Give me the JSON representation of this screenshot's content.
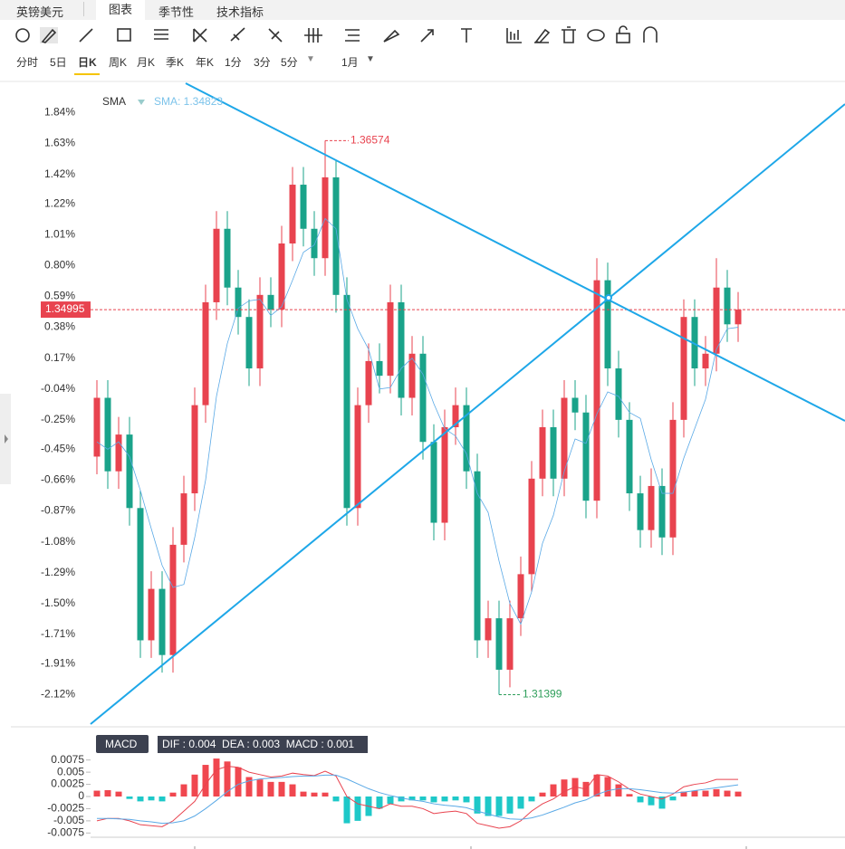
{
  "header": {
    "symbol": "英镑美元",
    "tabs": [
      "图表",
      "季节性",
      "技术指标"
    ]
  },
  "periods": [
    "分时",
    "5日",
    "日K",
    "周K",
    "月K",
    "季K",
    "年K",
    "1分",
    "3分",
    "5分"
  ],
  "period_dropdown": "1月",
  "indicator": {
    "name": "SMA",
    "readout": "SMA: 1.34823",
    "last_price": "1.34995",
    "max_label": "1.36574",
    "min_label": "1.31399"
  },
  "macd_panel": {
    "name": "MACD",
    "readout": "DIF : 0.004  DEA : 0.003  MACD : 0.001"
  },
  "chart_data": [
    {
      "type": "candlestick",
      "up_color": "#e8434f",
      "down_color": "#1aa38a",
      "ylim": [
        -2.32,
        2.04
      ],
      "yticks": [
        {
          "value": 1.84,
          "label": "1.84%"
        },
        {
          "value": 1.63,
          "label": "1.63%"
        },
        {
          "value": 1.42,
          "label": "1.42%"
        },
        {
          "value": 1.22,
          "label": "1.22%"
        },
        {
          "value": 1.01,
          "label": "1.01%"
        },
        {
          "value": 0.8,
          "label": "0.80%"
        },
        {
          "value": 0.59,
          "label": "0.59%"
        },
        {
          "value": 0.38,
          "label": "0.38%"
        },
        {
          "value": 0.17,
          "label": "0.17%"
        },
        {
          "value": -0.04,
          "label": "-0.04%"
        },
        {
          "value": -0.25,
          "label": "-0.25%"
        },
        {
          "value": -0.45,
          "label": "-0.45%"
        },
        {
          "value": -0.66,
          "label": "-0.66%"
        },
        {
          "value": -0.87,
          "label": "-0.87%"
        },
        {
          "value": -1.08,
          "label": "-1.08%"
        },
        {
          "value": -1.29,
          "label": "-1.29%"
        },
        {
          "value": -1.5,
          "label": "-1.50%"
        },
        {
          "value": -1.71,
          "label": "-1.71%"
        },
        {
          "value": -1.91,
          "label": "-1.91%"
        },
        {
          "value": -2.12,
          "label": "-2.12%"
        }
      ],
      "open": [
        -0.5,
        -0.1,
        -0.6,
        -0.35,
        -0.85,
        -1.75,
        -1.4,
        -1.85,
        -1.1,
        -0.75,
        -0.15,
        0.55,
        1.05,
        0.65,
        0.45,
        0.1,
        0.6,
        0.5,
        0.95,
        1.35,
        1.05,
        0.85,
        1.4,
        0.6,
        -0.85,
        -0.15,
        0.15,
        0.05,
        0.55,
        -0.1,
        0.2,
        -0.4,
        -0.95,
        -0.3,
        -0.15,
        -0.6,
        -1.75,
        -1.6,
        -1.95,
        -1.6,
        -1.3,
        -0.65,
        -0.3,
        -0.65,
        -0.1,
        -0.2,
        -0.8,
        0.7,
        0.1,
        -0.25,
        -0.75,
        -1.0,
        -0.7,
        -1.05,
        -0.25,
        0.45,
        0.1,
        0.2,
        0.65,
        0.4
      ],
      "high": [
        0.02,
        0.02,
        -0.23,
        -0.23,
        -0.73,
        -1.28,
        -1.28,
        -0.98,
        -0.63,
        -0.03,
        0.67,
        1.17,
        1.17,
        0.77,
        0.57,
        0.72,
        0.72,
        1.07,
        1.47,
        1.47,
        1.17,
        1.65,
        1.52,
        0.72,
        -0.03,
        0.27,
        0.27,
        0.67,
        0.67,
        0.32,
        0.32,
        -0.28,
        -0.18,
        -0.03,
        -0.03,
        -0.48,
        -1.48,
        -1.48,
        -1.48,
        -1.18,
        -0.53,
        -0.18,
        -0.18,
        0.02,
        0.02,
        -0.08,
        0.85,
        0.82,
        0.22,
        -0.13,
        -0.63,
        -0.58,
        -0.58,
        -0.13,
        0.57,
        0.57,
        0.32,
        0.85,
        0.77,
        0.62
      ],
      "low": [
        -0.62,
        -0.72,
        -0.72,
        -0.97,
        -1.87,
        -1.87,
        -1.97,
        -1.97,
        -1.22,
        -0.87,
        -0.27,
        0.43,
        0.53,
        0.33,
        -0.02,
        -0.02,
        0.38,
        0.38,
        0.83,
        0.93,
        0.73,
        0.73,
        0.48,
        -0.97,
        -0.97,
        -0.27,
        -0.07,
        -0.07,
        -0.22,
        -0.22,
        -0.52,
        -1.07,
        -1.07,
        -0.42,
        -0.72,
        -1.87,
        -1.87,
        -2.12,
        -2.07,
        -1.72,
        -1.42,
        -0.77,
        -0.77,
        -0.77,
        -0.32,
        -0.92,
        -0.92,
        -0.02,
        -0.37,
        -0.87,
        -1.12,
        -1.12,
        -1.17,
        -1.17,
        -0.37,
        -0.02,
        -0.02,
        0.08,
        0.28,
        0.28
      ],
      "close": [
        -0.1,
        -0.6,
        -0.35,
        -0.85,
        -1.75,
        -1.4,
        -1.85,
        -1.1,
        -0.75,
        -0.15,
        0.55,
        1.05,
        0.65,
        0.45,
        0.1,
        0.6,
        0.5,
        0.95,
        1.35,
        1.05,
        0.85,
        1.4,
        0.6,
        -0.85,
        -0.15,
        0.15,
        0.05,
        0.55,
        -0.1,
        0.2,
        -0.4,
        -0.95,
        -0.3,
        -0.15,
        -0.6,
        -1.75,
        -1.6,
        -1.95,
        -1.6,
        -1.3,
        -0.65,
        -0.3,
        -0.65,
        -0.1,
        -0.2,
        -0.8,
        0.7,
        0.1,
        -0.25,
        -0.75,
        -1.0,
        -0.7,
        -1.05,
        -0.25,
        0.45,
        0.1,
        0.2,
        0.65,
        0.4,
        0.5
      ],
      "series": [
        {
          "name": "SMA",
          "color": "#5aa9e6",
          "values": [
            -0.4,
            -0.45,
            -0.4,
            -0.5,
            -0.73,
            -0.99,
            -1.24,
            -1.39,
            -1.37,
            -1.05,
            -0.66,
            -0.09,
            0.27,
            0.51,
            0.56,
            0.57,
            0.46,
            0.52,
            0.7,
            0.89,
            0.94,
            1.12,
            1.05,
            0.57,
            0.37,
            0.23,
            -0.04,
            -0.03,
            0.1,
            0.17,
            0.06,
            -0.14,
            -0.31,
            -0.36,
            -0.48,
            -0.75,
            -0.88,
            -1.21,
            -1.5,
            -1.64,
            -1.42,
            -1.09,
            -0.9,
            -0.6,
            -0.38,
            -0.41,
            -0.21,
            -0.06,
            -0.09,
            -0.2,
            -0.24,
            -0.52,
            -0.75,
            -0.75,
            -0.51,
            -0.31,
            -0.11,
            0.23,
            0.37,
            0.38
          ]
        }
      ]
    },
    {
      "type": "macd",
      "up_color": "#f0474f",
      "down_color": "#1ec8c8",
      "ylim": [
        -0.0093,
        0.0093
      ],
      "yticks": [
        0.0075,
        0.005,
        0.0025,
        0,
        -0.0025,
        -0.005,
        -0.0075
      ],
      "values": [
        0.0012,
        0.0013,
        0.001,
        -0.0005,
        -0.001,
        -0.0008,
        -0.001,
        0.0008,
        0.0025,
        0.0045,
        0.0065,
        0.0078,
        0.0072,
        0.006,
        0.004,
        0.0035,
        0.003,
        0.003,
        0.0025,
        0.001,
        0.0008,
        0.0008,
        -0.001,
        -0.0055,
        -0.005,
        -0.004,
        -0.0025,
        -0.0015,
        -0.001,
        -0.0008,
        -0.0008,
        -0.0012,
        -0.001,
        -0.0008,
        -0.0012,
        -0.0035,
        -0.004,
        -0.004,
        -0.0035,
        -0.0025,
        -0.001,
        0.0008,
        0.0025,
        0.0035,
        0.0038,
        0.003,
        0.0045,
        0.004,
        0.0025,
        0.0005,
        -0.0012,
        -0.0018,
        -0.0025,
        -0.0008,
        0.001,
        0.0012,
        0.0012,
        0.0015,
        0.0012,
        0.001
      ],
      "series": [
        {
          "name": "DIF",
          "color": "#e8434f",
          "values": [
            -0.005,
            -0.0045,
            -0.0045,
            -0.005,
            -0.0058,
            -0.006,
            -0.0062,
            -0.005,
            -0.003,
            -0.001,
            0.0025,
            0.0055,
            0.0062,
            0.006,
            0.005,
            0.0045,
            0.004,
            0.0042,
            0.0048,
            0.0045,
            0.0043,
            0.0052,
            0.0042,
            0,
            -0.0015,
            -0.002,
            -0.0025,
            -0.0015,
            -0.002,
            -0.002,
            -0.0025,
            -0.0035,
            -0.0032,
            -0.003,
            -0.0035,
            -0.0055,
            -0.006,
            -0.0065,
            -0.0062,
            -0.005,
            -0.003,
            -0.0015,
            -0.0005,
            0.001,
            0.002,
            0.0015,
            0.0045,
            0.0042,
            0.003,
            0.0015,
            0.0005,
            0,
            -0.0005,
            0.0005,
            0.002,
            0.0025,
            0.0028,
            0.0035,
            0.0035,
            0.0035
          ]
        },
        {
          "name": "DEA",
          "color": "#5aa9e6",
          "values": [
            -0.0045,
            -0.0045,
            -0.0046,
            -0.0047,
            -0.005,
            -0.0052,
            -0.0055,
            -0.0054,
            -0.005,
            -0.004,
            -0.0025,
            -0.0008,
            0.001,
            0.0025,
            0.0032,
            0.0036,
            0.0038,
            0.0039,
            0.0041,
            0.0042,
            0.0042,
            0.0044,
            0.0044,
            0.0036,
            0.0026,
            0.0016,
            0.0008,
            0.0002,
            -0.0003,
            -0.0007,
            -0.001,
            -0.0015,
            -0.0018,
            -0.002,
            -0.0023,
            -0.003,
            -0.0036,
            -0.0042,
            -0.0046,
            -0.0047,
            -0.0044,
            -0.0038,
            -0.003,
            -0.0022,
            -0.0013,
            -0.0007,
            0.0004,
            0.0012,
            0.0016,
            0.0016,
            0.0014,
            0.0011,
            0.0008,
            0.0007,
            0.0009,
            0.0012,
            0.0015,
            0.0018,
            0.0021,
            0.0024
          ]
        }
      ]
    }
  ]
}
